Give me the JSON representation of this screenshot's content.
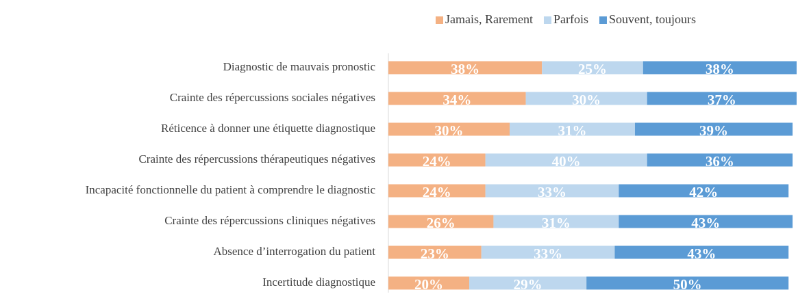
{
  "chart_data": {
    "type": "stacked-bar-horizontal",
    "categories": [
      "Diagnostic de mauvais pronostic",
      "Crainte des répercussions sociales négatives",
      "Réticence à donner une étiquette diagnostique",
      "Crainte des répercussions thérapeutiques négatives",
      "Incapacité fonctionnelle du patient à comprendre le diagnostic",
      "Crainte des répercussions cliniques négatives",
      "Absence d’interrogation du patient",
      "Incertitude diagnostique"
    ],
    "series": [
      {
        "name": "Jamais, Rarement",
        "color": "#f4b183",
        "values": [
          38,
          34,
          30,
          24,
          24,
          26,
          23,
          20
        ],
        "value_labels": [
          "38%",
          "34%",
          "30%",
          "24%",
          "24%",
          "26%",
          "23%",
          "20%"
        ]
      },
      {
        "name": "Parfois",
        "color": "#bdd7ee",
        "values": [
          25,
          30,
          31,
          40,
          33,
          31,
          33,
          29
        ],
        "value_labels": [
          "25%",
          "30%",
          "31%",
          "40%",
          "33%",
          "31%",
          "33%",
          "29%"
        ]
      },
      {
        "name": "Souvent, toujours",
        "color": "#5b9bd5",
        "values": [
          38,
          37,
          39,
          36,
          42,
          43,
          43,
          50
        ],
        "value_labels": [
          "38%",
          "37%",
          "39%",
          "36%",
          "42%",
          "43%",
          "43%",
          "50%"
        ]
      }
    ],
    "legend": "top-right"
  }
}
